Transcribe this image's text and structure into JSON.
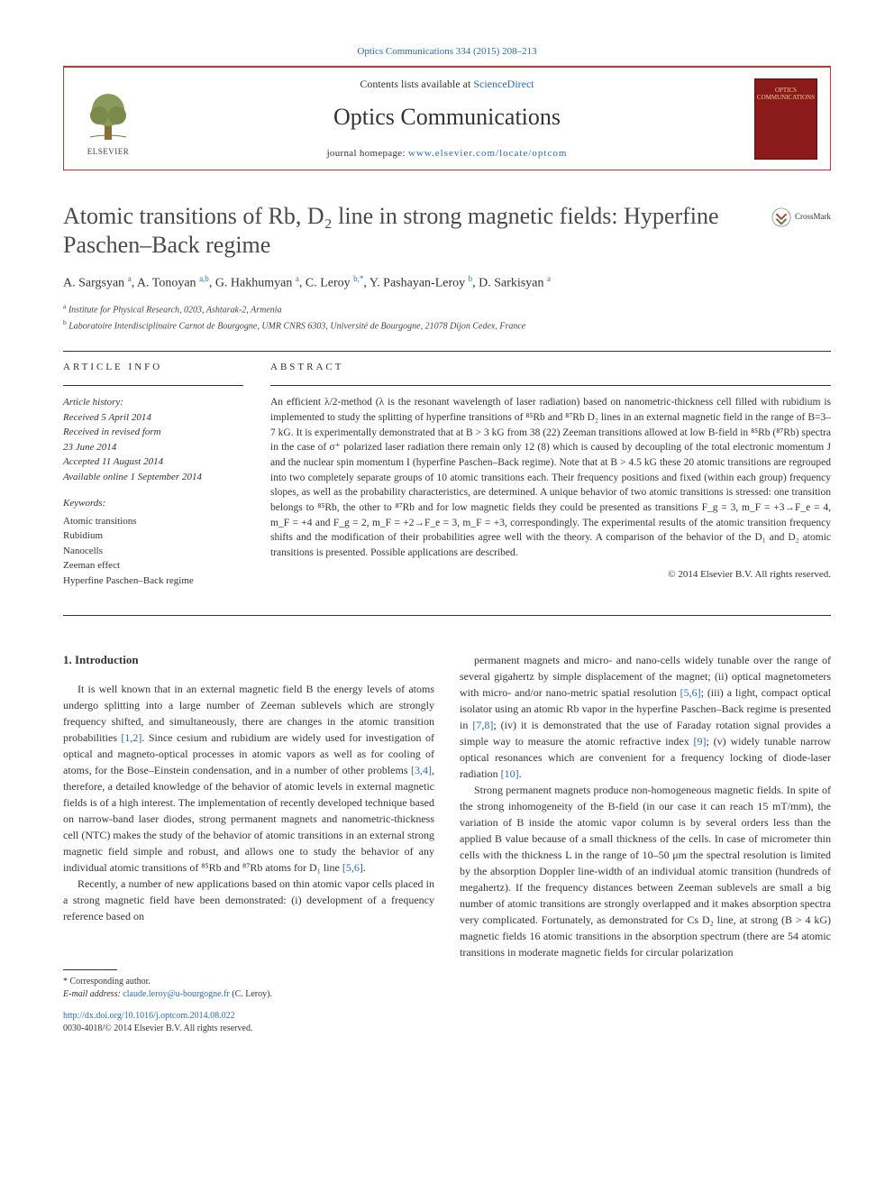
{
  "top_citation": {
    "text": "Optics Communications 334 (2015) 208–213",
    "link_color": "#2a6ab5"
  },
  "header": {
    "contents_prefix": "Contents lists available at ",
    "contents_link": "ScienceDirect",
    "journal_name": "Optics Communications",
    "homepage_prefix": "journal homepage: ",
    "homepage_url": "www.elsevier.com/locate/optcom",
    "publisher_logo_text": "ELSEVIER",
    "cover_line1": "OPTICS",
    "cover_line2": "COMMUNICATIONS"
  },
  "article": {
    "title": "Atomic transitions of Rb, D₂ line in strong magnetic fields: Hyperfine Paschen–Back regime",
    "crossmark_label": "CrossMark",
    "authors_html": "A. Sargsyan <sup>a</sup>, A. Tonoyan <sup>a,b</sup>, G. Hakhumyan <sup>a</sup>, C. Leroy <sup>b,*</sup>, Y. Pashayan-Leroy <sup>b</sup>, D. Sarkisyan <sup>a</sup>",
    "affiliations": [
      {
        "marker": "a",
        "text": "Institute for Physical Research, 0203, Ashtarak-2, Armenia"
      },
      {
        "marker": "b",
        "text": "Laboratoire Interdisciplinaire Carnot de Bourgogne, UMR CNRS 6303, Université de Bourgogne, 21078 Dijon Cedex, France"
      }
    ]
  },
  "meta": {
    "info_label": "ARTICLE INFO",
    "abstract_label": "ABSTRACT",
    "history_label": "Article history:",
    "history_lines": [
      "Received 5 April 2014",
      "Received in revised form",
      "23 June 2014",
      "Accepted 11 August 2014",
      "Available online 1 September 2014"
    ],
    "keywords_label": "Keywords:",
    "keywords": [
      "Atomic transitions",
      "Rubidium",
      "Nanocells",
      "Zeeman effect",
      "Hyperfine Paschen–Back regime"
    ]
  },
  "abstract": {
    "text": "An efficient λ/2-method (λ is the resonant wavelength of laser radiation) based on nanometric-thickness cell filled with rubidium is implemented to study the splitting of hyperfine transitions of ⁸⁵Rb and ⁸⁷Rb D₂ lines in an external magnetic field in the range of B=3–7 kG. It is experimentally demonstrated that at B > 3 kG from 38 (22) Zeeman transitions allowed at low B-field in ⁸⁵Rb (⁸⁷Rb) spectra in the case of σ⁺ polarized laser radiation there remain only 12 (8) which is caused by decoupling of the total electronic momentum J and the nuclear spin momentum I (hyperfine Paschen–Back regime). Note that at B > 4.5 kG these 20 atomic transitions are regrouped into two completely separate groups of 10 atomic transitions each. Their frequency positions and fixed (within each group) frequency slopes, as well as the probability characteristics, are determined. A unique behavior of two atomic transitions is stressed: one transition belongs to ⁸⁵Rb, the other to ⁸⁷Rb and for low magnetic fields they could be presented as transitions F_g = 3, m_F = +3→F_e = 4, m_F = +4 and F_g = 2, m_F = +2→F_e = 3, m_F = +3, correspondingly. The experimental results of the atomic transition frequency shifts and the modification of their probabilities agree well with the theory. A comparison of the behavior of the D₁ and D₂ atomic transitions is presented. Possible applications are described.",
    "copyright": "© 2014 Elsevier B.V. All rights reserved."
  },
  "body": {
    "section_number": "1.",
    "section_title": "Introduction",
    "col1_paragraphs": [
      "It is well known that in an external magnetic field B the energy levels of atoms undergo splitting into a large number of Zeeman sublevels which are strongly frequency shifted, and simultaneously, there are changes in the atomic transition probabilities [1,2]. Since cesium and rubidium are widely used for investigation of optical and magneto-optical processes in atomic vapors as well as for cooling of atoms, for the Bose–Einstein condensation, and in a number of other problems [3,4], therefore, a detailed knowledge of the behavior of atomic levels in external magnetic fields is of a high interest. The implementation of recently developed technique based on narrow-band laser diodes, strong permanent magnets and nanometric-thickness cell (NTC) makes the study of the behavior of atomic transitions in an external strong magnetic field simple and robust, and allows one to study the behavior of any individual atomic transitions of ⁸⁵Rb and ⁸⁷Rb atoms for D₁ line [5,6].",
      "Recently, a number of new applications based on thin atomic vapor cells placed in a strong magnetic field have been demonstrated: (i) development of a frequency reference based on"
    ],
    "col2_paragraphs": [
      "permanent magnets and micro- and nano-cells widely tunable over the range of several gigahertz by simple displacement of the magnet; (ii) optical magnetometers with micro- and/or nano-metric spatial resolution [5,6]; (iii) a light, compact optical isolator using an atomic Rb vapor in the hyperfine Paschen–Back regime is presented in [7,8]; (iv) it is demonstrated that the use of Faraday rotation signal provides a simple way to measure the atomic refractive index [9]; (v) widely tunable narrow optical resonances which are convenient for a frequency locking of diode-laser radiation [10].",
      "Strong permanent magnets produce non-homogeneous magnetic fields. In spite of the strong inhomogeneity of the B-field (in our case it can reach 15 mT/mm), the variation of B inside the atomic vapor column is by several orders less than the applied B value because of a small thickness of the cells. In case of micrometer thin cells with the thickness L in the range of 10–50 μm the spectral resolution is limited by the absorption Doppler line-width of an individual atomic transition (hundreds of megahertz). If the frequency distances between Zeeman sublevels are small a big number of atomic transitions are strongly overlapped and it makes absorption spectra very complicated. Fortunately, as demonstrated for Cs D₂ line, at strong (B > 4 kG) magnetic fields 16 atomic transitions in the absorption spectrum (there are 54 atomic transitions in moderate magnetic fields for circular polarization"
    ]
  },
  "footnotes": {
    "corresponding": "* Corresponding author.",
    "email_label": "E-mail address: ",
    "email": "claude.leroy@u-bourgogne.fr",
    "email_person": " (C. Leroy).",
    "doi": "http://dx.doi.org/10.1016/j.optcom.2014.08.022",
    "issn": "0030-4018/© 2014 Elsevier B.V. All rights reserved."
  },
  "colors": {
    "link": "#2a6ab5",
    "header_border": "#c0392b",
    "cover_bg": "#8b1a1a",
    "cover_text": "#e8d090",
    "text": "#333333"
  }
}
